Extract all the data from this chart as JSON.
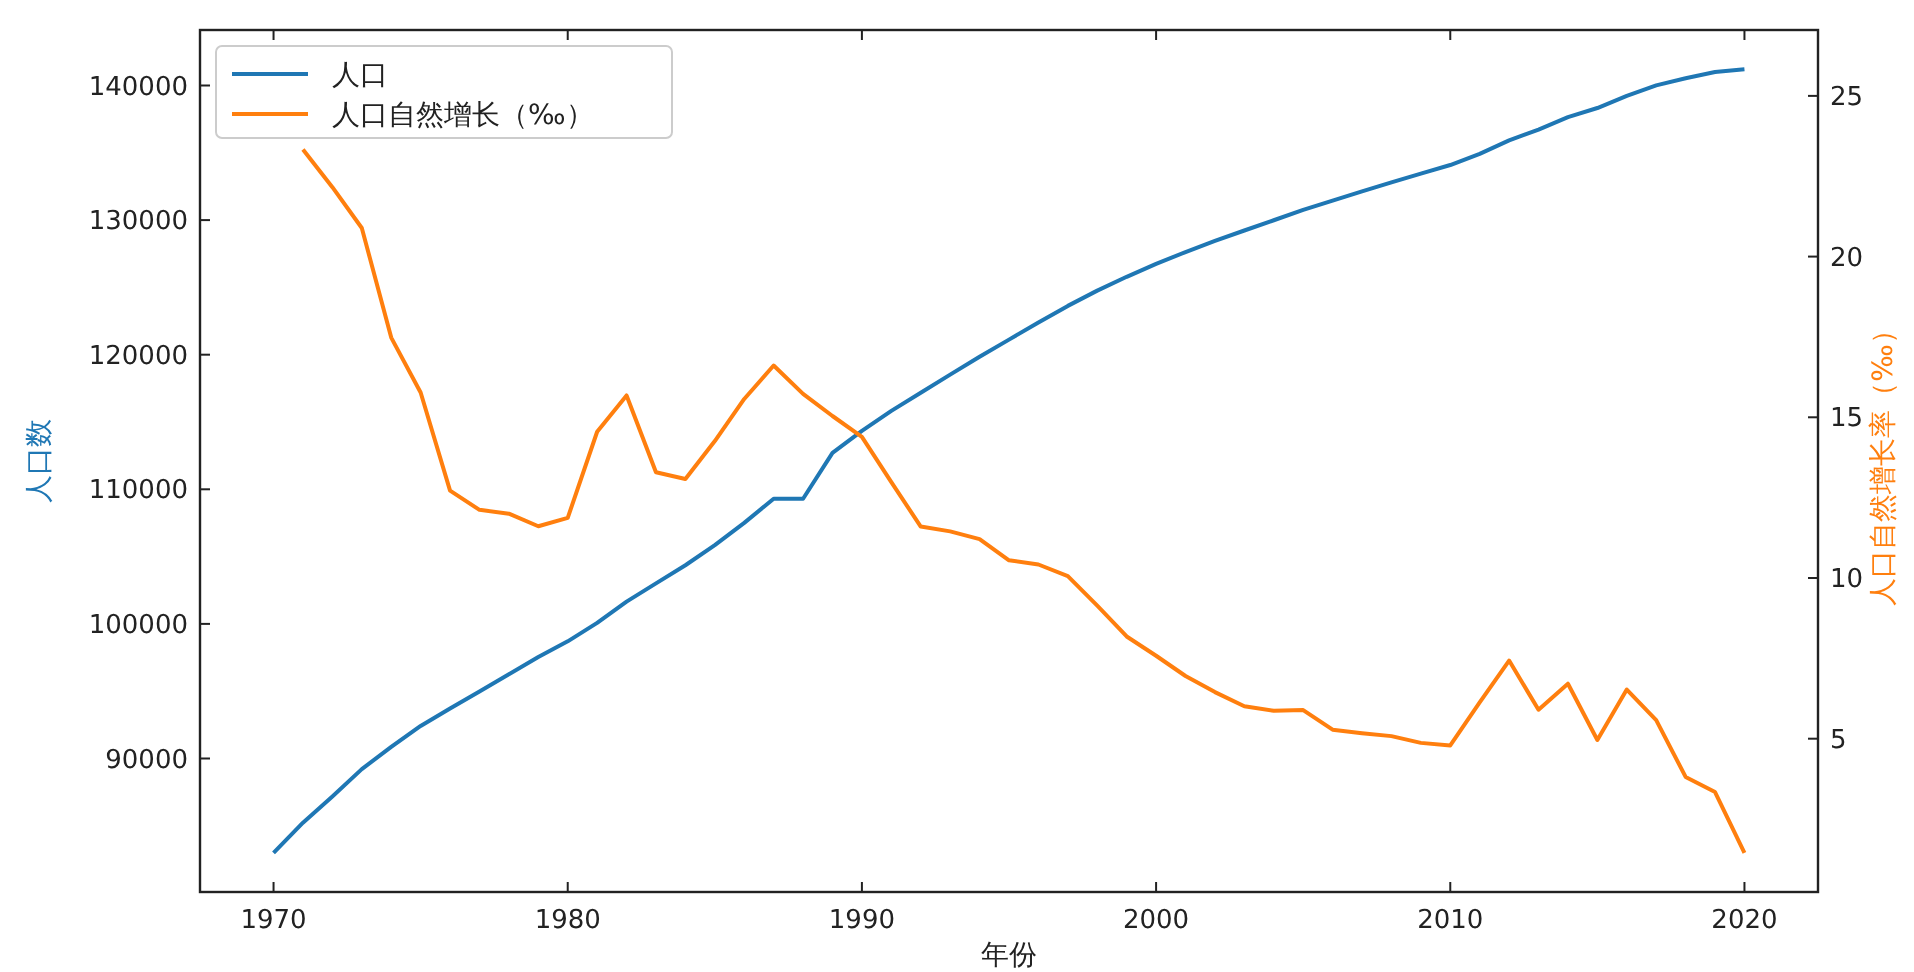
{
  "chart_data": {
    "type": "line",
    "xlabel": "年份",
    "ylabel": "人口数",
    "y2label": "人口自然增长率（‰）",
    "x": [
      1970,
      1971,
      1972,
      1973,
      1974,
      1975,
      1976,
      1977,
      1978,
      1979,
      1980,
      1981,
      1982,
      1983,
      1984,
      1985,
      1986,
      1987,
      1988,
      1989,
      1990,
      1991,
      1992,
      1993,
      1994,
      1995,
      1996,
      1997,
      1998,
      1999,
      2000,
      2001,
      2002,
      2003,
      2004,
      2005,
      2006,
      2007,
      2008,
      2009,
      2010,
      2011,
      2012,
      2013,
      2014,
      2015,
      2016,
      2017,
      2018,
      2019,
      2020
    ],
    "series": [
      {
        "name": "人口",
        "color": "#1f77b4",
        "values": [
          82992,
          85229,
          87177,
          89211,
          90859,
          92420,
          93717,
          94974,
          96259,
          97542,
          98705,
          100072,
          101654,
          103008,
          104357,
          105851,
          107507,
          109300,
          109300,
          112704,
          114333,
          115823,
          117171,
          118517,
          119850,
          121121,
          122389,
          123626,
          124761,
          125786,
          126743,
          127627,
          128453,
          129227,
          129988,
          130756,
          131448,
          132129,
          132802,
          133450,
          134091,
          134916,
          135922,
          136726,
          137646,
          138326,
          139232,
          140011,
          140541,
          141008,
          141212
        ]
      },
      {
        "name": "人口自然增长（‰）",
        "color": "#ff7f0e",
        "axis": "y2",
        "values": [
          null,
          23.33,
          22.16,
          20.89,
          17.48,
          15.77,
          12.72,
          12.12,
          12.0,
          11.61,
          11.87,
          14.55,
          15.68,
          13.29,
          13.08,
          14.26,
          15.57,
          16.61,
          15.73,
          15.04,
          14.39,
          12.98,
          11.6,
          11.45,
          11.21,
          10.55,
          10.42,
          10.06,
          9.14,
          8.18,
          7.58,
          6.95,
          6.45,
          6.01,
          5.87,
          5.89,
          5.28,
          5.17,
          5.08,
          4.87,
          4.79,
          6.13,
          7.43,
          5.9,
          6.71,
          4.96,
          6.53,
          5.58,
          3.81,
          3.34,
          1.45
        ]
      }
    ],
    "xlim": [
      1967.5,
      2022.5
    ],
    "xticks": [
      1970,
      1980,
      1990,
      2000,
      2010,
      2020
    ],
    "ylim": [
      80081,
      144123
    ],
    "yticks": [
      90000,
      100000,
      110000,
      120000,
      130000,
      140000
    ],
    "y2lim": [
      0.23,
      27.05
    ],
    "y2ticks": [
      5,
      10,
      15,
      20,
      25
    ],
    "legend": "top left",
    "grid": false,
    "line_style": "solid",
    "marker": "none"
  }
}
